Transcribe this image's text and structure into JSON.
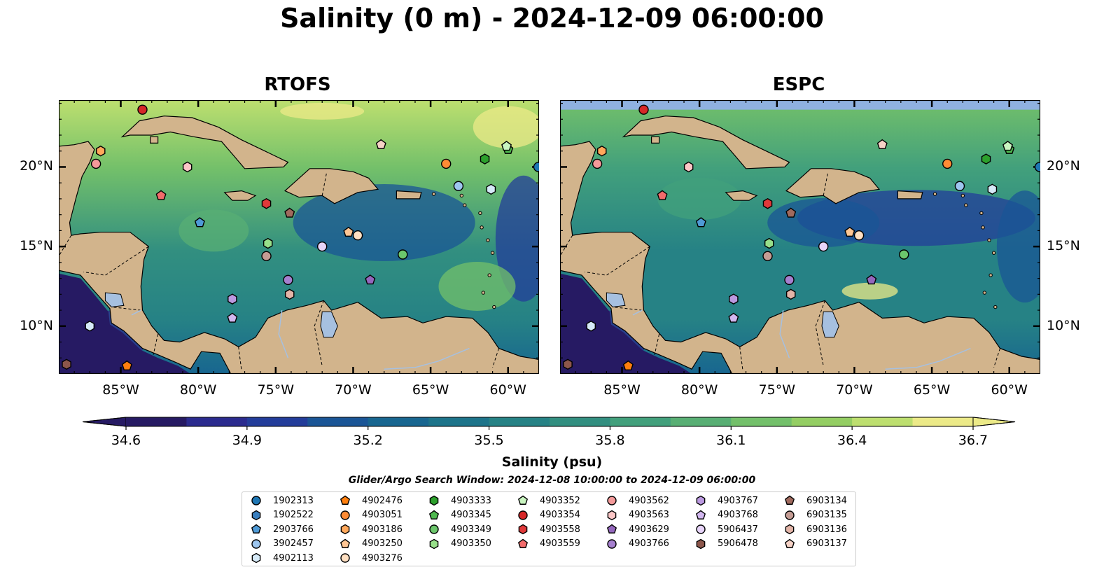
{
  "title": "Salinity (0 m) - 2024-12-09 06:00:00",
  "panels": [
    {
      "title": "RTOFS"
    },
    {
      "title": "ESPC"
    }
  ],
  "map_extent": {
    "lon_min": -89,
    "lon_max": -58,
    "lat_min": 7,
    "lat_max": 24.2
  },
  "x_ticks": [
    {
      "lon": -85,
      "label": "85°W"
    },
    {
      "lon": -80,
      "label": "80°W"
    },
    {
      "lon": -75,
      "label": "75°W"
    },
    {
      "lon": -70,
      "label": "70°W"
    },
    {
      "lon": -65,
      "label": "65°W"
    },
    {
      "lon": -60,
      "label": "60°W"
    }
  ],
  "y_ticks": [
    {
      "lat": 20,
      "label": "20°N"
    },
    {
      "lat": 15,
      "label": "15°N"
    },
    {
      "lat": 10,
      "label": "10°N"
    }
  ],
  "colorbar": {
    "label": "Salinity (psu)",
    "min": 34.6,
    "max": 36.7,
    "ticks": [
      {
        "value": 34.6,
        "label": "34.6"
      },
      {
        "value": 34.9,
        "label": "34.9"
      },
      {
        "value": 35.2,
        "label": "35.2"
      },
      {
        "value": 35.5,
        "label": "35.5"
      },
      {
        "value": 35.8,
        "label": "35.8"
      },
      {
        "value": 36.1,
        "label": "36.1"
      },
      {
        "value": 36.4,
        "label": "36.4"
      },
      {
        "value": 36.7,
        "label": "36.7"
      }
    ],
    "colors": [
      "#261a63",
      "#2b2b8e",
      "#233d9a",
      "#1a5596",
      "#186690",
      "#1d748a",
      "#268285",
      "#328f80",
      "#42a07c",
      "#58af74",
      "#73c06a",
      "#94ce63",
      "#bddf6f",
      "#ecea88"
    ]
  },
  "colors": {
    "land": "#d2b48c",
    "lake": "#a6c0e0",
    "espc_band": "#8fb1e0"
  },
  "search_window": "Glider/Argo Search Window: 2024-12-08 10:00:00 to 2024-12-09 06:00:00",
  "legend": [
    {
      "id": "1902313",
      "marker": "circle",
      "color": "#1f77b4"
    },
    {
      "id": "1902522",
      "marker": "hexagon",
      "color": "#3a7fbf"
    },
    {
      "id": "2903766",
      "marker": "pentagon",
      "color": "#4f9ad6"
    },
    {
      "id": "3902457",
      "marker": "circle",
      "color": "#9dc6ef"
    },
    {
      "id": "4902113",
      "marker": "hexagon",
      "color": "#d6eaf8"
    },
    {
      "id": "4902476",
      "marker": "pentagon",
      "color": "#ff7f0e"
    },
    {
      "id": "4903051",
      "marker": "circle",
      "color": "#ff8c35"
    },
    {
      "id": "4903186",
      "marker": "hexagon",
      "color": "#ffa85b"
    },
    {
      "id": "4903250",
      "marker": "pentagon",
      "color": "#ffc694"
    },
    {
      "id": "4903276",
      "marker": "circle",
      "color": "#ffe0c2"
    },
    {
      "id": "4903333",
      "marker": "hexagon",
      "color": "#2ca02c"
    },
    {
      "id": "4903345",
      "marker": "pentagon",
      "color": "#4fb84f"
    },
    {
      "id": "4903349",
      "marker": "circle",
      "color": "#6cc66c"
    },
    {
      "id": "4903350",
      "marker": "hexagon",
      "color": "#98df8a"
    },
    {
      "id": "4903352",
      "marker": "pentagon",
      "color": "#c9f5c0"
    },
    {
      "id": "4903354",
      "marker": "circle",
      "color": "#d62728"
    },
    {
      "id": "4903558",
      "marker": "hexagon",
      "color": "#e0393a"
    },
    {
      "id": "4903559",
      "marker": "pentagon",
      "color": "#f26b6b"
    },
    {
      "id": "4903562",
      "marker": "circle",
      "color": "#f49a9a"
    },
    {
      "id": "4903563",
      "marker": "hexagon",
      "color": "#fbc6c6"
    },
    {
      "id": "4903629",
      "marker": "pentagon",
      "color": "#9467bd"
    },
    {
      "id": "4903766",
      "marker": "circle",
      "color": "#a680cf"
    },
    {
      "id": "4903767",
      "marker": "hexagon",
      "color": "#bb99e0"
    },
    {
      "id": "4903768",
      "marker": "pentagon",
      "color": "#d2b7ef"
    },
    {
      "id": "5906437",
      "marker": "circle",
      "color": "#e7d4f9"
    },
    {
      "id": "5906478",
      "marker": "hexagon",
      "color": "#8c564b"
    },
    {
      "id": "6903134",
      "marker": "pentagon",
      "color": "#a06a5e"
    },
    {
      "id": "6903135",
      "marker": "circle",
      "color": "#c49c94"
    },
    {
      "id": "6903136",
      "marker": "hexagon",
      "color": "#e3b5a8"
    },
    {
      "id": "6903137",
      "marker": "pentagon",
      "color": "#f6d2c6"
    }
  ],
  "floats": [
    {
      "id": "1902313",
      "lon": -58.0,
      "lat": 20.0
    },
    {
      "id": "3902457",
      "lon": -63.2,
      "lat": 18.8
    },
    {
      "id": "4902113",
      "lon": -61.1,
      "lat": 18.6
    },
    {
      "id": "4902476",
      "lon": -84.6,
      "lat": 7.5
    },
    {
      "id": "4903051",
      "lon": -64.0,
      "lat": 20.2
    },
    {
      "id": "4903250",
      "lon": -70.3,
      "lat": 15.9
    },
    {
      "id": "4903276",
      "lon": -69.7,
      "lat": 15.7
    },
    {
      "id": "4903333",
      "lon": -61.5,
      "lat": 20.5
    },
    {
      "id": "4903345",
      "lon": -60.0,
      "lat": 21.1
    },
    {
      "id": "4903349",
      "lon": -66.8,
      "lat": 14.5
    },
    {
      "id": "4903350",
      "lon": -75.5,
      "lat": 15.2
    },
    {
      "id": "4903352",
      "lon": -60.1,
      "lat": 21.3
    },
    {
      "id": "4903354",
      "lon": -83.6,
      "lat": 23.6
    },
    {
      "id": "4903558",
      "lon": -75.6,
      "lat": 17.7
    },
    {
      "id": "4903559",
      "lon": -82.4,
      "lat": 18.2
    },
    {
      "id": "4903562",
      "lon": -86.6,
      "lat": 20.2
    },
    {
      "id": "4903563",
      "lon": -80.7,
      "lat": 20.0
    },
    {
      "id": "4903629",
      "lon": -68.9,
      "lat": 12.9
    },
    {
      "id": "4903766",
      "lon": -74.2,
      "lat": 12.9
    },
    {
      "id": "4903767",
      "lon": -77.8,
      "lat": 11.7
    },
    {
      "id": "4903768",
      "lon": -77.8,
      "lat": 10.5
    },
    {
      "id": "5906437",
      "lon": -72.0,
      "lat": 15.0
    },
    {
      "id": "5906478",
      "lon": -88.5,
      "lat": 7.6
    },
    {
      "id": "6903134",
      "lon": -74.1,
      "lat": 17.1
    },
    {
      "id": "6903135",
      "lon": -75.6,
      "lat": 14.4
    },
    {
      "id": "6903136",
      "lon": -74.1,
      "lat": 12.0
    },
    {
      "id": "6903137",
      "lon": -68.2,
      "lat": 21.4
    },
    {
      "id": "2903766",
      "lon": -79.9,
      "lat": 16.5
    },
    {
      "id": "4903186",
      "lon": -86.3,
      "lat": 21.0
    },
    {
      "id": "4902113",
      "lon": -87.0,
      "lat": 10.0
    }
  ]
}
